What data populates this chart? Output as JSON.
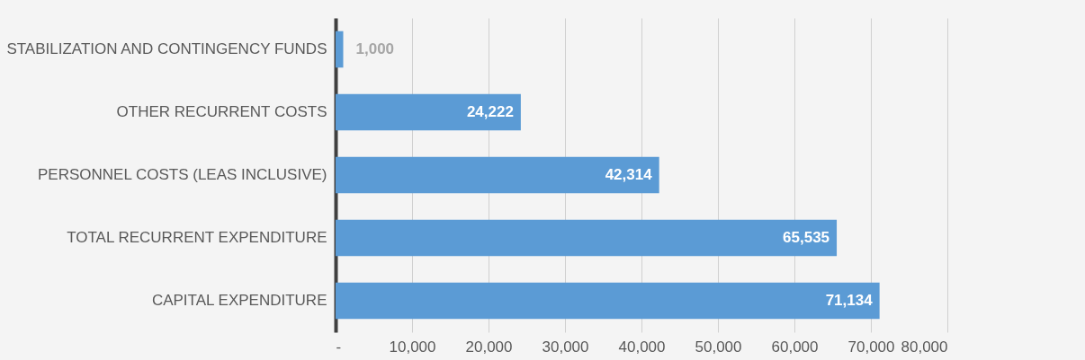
{
  "chart_data": {
    "type": "bar",
    "orientation": "horizontal",
    "categories": [
      "STABILIZATION AND CONTINGENCY FUNDS",
      "OTHER RECURRENT COSTS",
      "PERSONNEL COSTS (LEAS INCLUSIVE)",
      "TOTAL RECURRENT EXPENDITURE",
      "CAPITAL EXPENDITURE"
    ],
    "values": [
      1000,
      24222,
      42314,
      65535,
      71134
    ],
    "color": "#5b9bd5",
    "xlim": [
      0,
      80000
    ],
    "xticks": [
      {
        "value": 0,
        "label": "-"
      },
      {
        "value": 10000,
        "label": "10,000"
      },
      {
        "value": 20000,
        "label": "20,000"
      },
      {
        "value": 30000,
        "label": "30,000"
      },
      {
        "value": 40000,
        "label": "40,000"
      },
      {
        "value": 50000,
        "label": "50,000"
      },
      {
        "value": 60000,
        "label": "60,000"
      },
      {
        "value": 70000,
        "label": "70,000"
      },
      {
        "value": 80000,
        "label": "80,000"
      }
    ],
    "value_labels": [
      "1,000",
      "24,222",
      "42,314",
      "65,535",
      "71,134"
    ],
    "grid": "x"
  }
}
